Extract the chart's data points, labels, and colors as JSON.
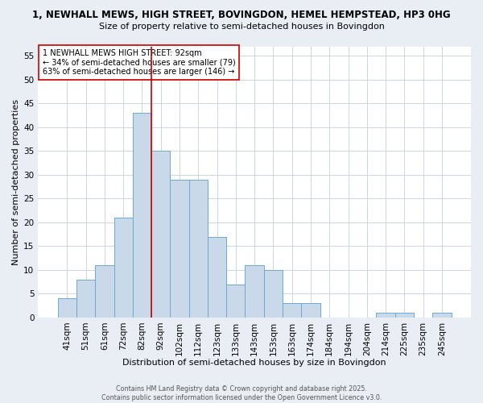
{
  "title_line1": "1, NEWHALL MEWS, HIGH STREET, BOVINGDON, HEMEL HEMPSTEAD, HP3 0HG",
  "title_line2": "Size of property relative to semi-detached houses in Bovingdon",
  "xlabel": "Distribution of semi-detached houses by size in Bovingdon",
  "ylabel": "Number of semi-detached properties",
  "bar_labels": [
    "41sqm",
    "51sqm",
    "61sqm",
    "72sqm",
    "82sqm",
    "92sqm",
    "102sqm",
    "112sqm",
    "123sqm",
    "133sqm",
    "143sqm",
    "153sqm",
    "163sqm",
    "174sqm",
    "184sqm",
    "194sqm",
    "204sqm",
    "214sqm",
    "225sqm",
    "235sqm",
    "245sqm"
  ],
  "bar_values": [
    4,
    8,
    11,
    21,
    43,
    35,
    29,
    29,
    17,
    7,
    11,
    10,
    3,
    3,
    0,
    0,
    0,
    1,
    1,
    0,
    1
  ],
  "bar_color": "#c9d9ea",
  "bar_edge_color": "#6aaad4",
  "vline_color": "#cc0000",
  "annotation_text": "1 NEWHALL MEWS HIGH STREET: 92sqm\n← 34% of semi-detached houses are smaller (79)\n63% of semi-detached houses are larger (146) →",
  "ylim": [
    0,
    57
  ],
  "yticks": [
    0,
    5,
    10,
    15,
    20,
    25,
    30,
    35,
    40,
    45,
    50,
    55
  ],
  "footnote": "Contains HM Land Registry data © Crown copyright and database right 2025.\nContains public sector information licensed under the Open Government Licence v3.0.",
  "bg_color": "#e8eef4",
  "plot_bg_color": "#ffffff",
  "grid_color": "#c5cfd8",
  "title_fontsize": 8.5,
  "subtitle_fontsize": 8.0,
  "xlabel_fontsize": 8.0,
  "ylabel_fontsize": 8.0,
  "tick_fontsize": 7.5,
  "annotation_fontsize": 7.0,
  "footnote_fontsize": 5.8
}
